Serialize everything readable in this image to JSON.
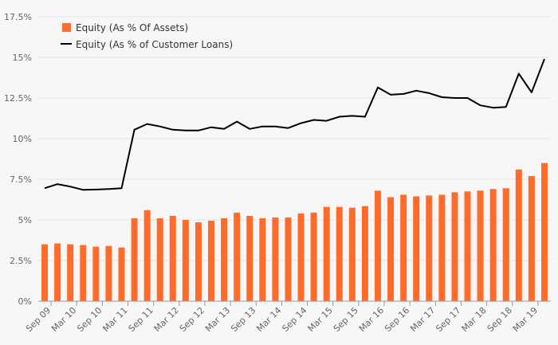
{
  "chart_data": {
    "type": "bar+line",
    "title": "",
    "xlabel": "",
    "ylabel": "",
    "ylim": [
      0,
      17.5
    ],
    "y_ticks": [
      "0%",
      "2.5%",
      "5%",
      "7.5%",
      "10%",
      "12.5%",
      "15%",
      "17.5%"
    ],
    "y_tick_values": [
      0,
      2.5,
      5,
      7.5,
      10,
      12.5,
      15,
      17.5
    ],
    "grid": true,
    "legend_position": "top-left",
    "x_tick_labels": [
      "Sep 09",
      "Mar 10",
      "Sep 10",
      "Mar 11",
      "Sep 11",
      "Mar 12",
      "Sep 12",
      "Mar 13",
      "Sep 13",
      "Mar 14",
      "Sep 14",
      "Mar 15",
      "Sep 15",
      "Mar 16",
      "Sep 16",
      "Mar 17",
      "Sep 17",
      "Mar 18",
      "Sep 18",
      "Mar 19"
    ],
    "series": [
      {
        "name": "Equity (As % Of Assets)",
        "type": "bar",
        "color": "#ff6b2b",
        "values": [
          3.5,
          3.55,
          3.5,
          3.45,
          3.35,
          3.4,
          3.3,
          5.1,
          5.6,
          5.1,
          5.25,
          5.0,
          4.85,
          4.95,
          5.1,
          5.45,
          5.25,
          5.1,
          5.15,
          5.15,
          5.4,
          5.45,
          5.8,
          5.8,
          5.75,
          5.85,
          6.8,
          6.4,
          6.55,
          6.45,
          6.5,
          6.55,
          6.7,
          6.75,
          6.8,
          6.9,
          6.95,
          8.1,
          7.7,
          8.5
        ]
      },
      {
        "name": "Equity (As % of Customer Loans)",
        "type": "line",
        "color": "#000000",
        "values": [
          6.95,
          7.2,
          7.05,
          6.85,
          6.87,
          6.9,
          6.95,
          10.55,
          10.9,
          10.75,
          10.55,
          10.5,
          10.5,
          10.7,
          10.6,
          11.05,
          10.6,
          10.75,
          10.75,
          10.65,
          10.95,
          11.15,
          11.1,
          11.35,
          11.4,
          11.35,
          13.15,
          12.7,
          12.75,
          12.95,
          12.8,
          12.55,
          12.5,
          12.5,
          12.05,
          11.9,
          11.95,
          14.0,
          12.85,
          14.9
        ]
      }
    ]
  }
}
